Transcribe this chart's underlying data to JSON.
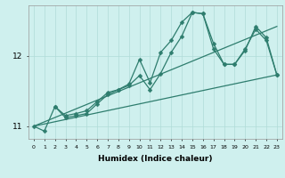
{
  "xlabel": "Humidex (Indice chaleur)",
  "bg_color": "#cff0ee",
  "line_color": "#2e7d6e",
  "grid_color": "#b0dbd8",
  "xlim": [
    -0.5,
    23.5
  ],
  "ylim": [
    10.82,
    12.72
  ],
  "yticks": [
    11,
    12
  ],
  "xticks": [
    0,
    1,
    2,
    3,
    4,
    5,
    6,
    7,
    8,
    9,
    10,
    11,
    12,
    13,
    14,
    15,
    16,
    17,
    18,
    19,
    20,
    21,
    22,
    23
  ],
  "line1_x": [
    0,
    1,
    2,
    3,
    4,
    5,
    6,
    7,
    8,
    9,
    10,
    11,
    12,
    13,
    14,
    15,
    16,
    17,
    18,
    19,
    20,
    21,
    22,
    23
  ],
  "line1_y": [
    11.0,
    10.93,
    11.28,
    11.15,
    11.18,
    11.22,
    11.35,
    11.48,
    11.52,
    11.6,
    11.95,
    11.62,
    12.05,
    12.22,
    12.48,
    12.62,
    12.6,
    12.18,
    11.88,
    11.88,
    12.08,
    12.42,
    12.26,
    11.73
  ],
  "line2_x": [
    2,
    3,
    4,
    5,
    6,
    7,
    8,
    9,
    10,
    11,
    12,
    13,
    14,
    15,
    16,
    17,
    18,
    19,
    20,
    21,
    22,
    23
  ],
  "line2_y": [
    11.28,
    11.12,
    11.15,
    11.18,
    11.32,
    11.45,
    11.52,
    11.58,
    11.72,
    11.52,
    11.75,
    12.05,
    12.28,
    12.62,
    12.6,
    12.1,
    11.88,
    11.88,
    12.1,
    12.38,
    12.22,
    11.73
  ],
  "line3_x": [
    0,
    23
  ],
  "line3_y": [
    11.0,
    11.73
  ],
  "line4_x": [
    0,
    23
  ],
  "line4_y": [
    11.0,
    12.42
  ]
}
